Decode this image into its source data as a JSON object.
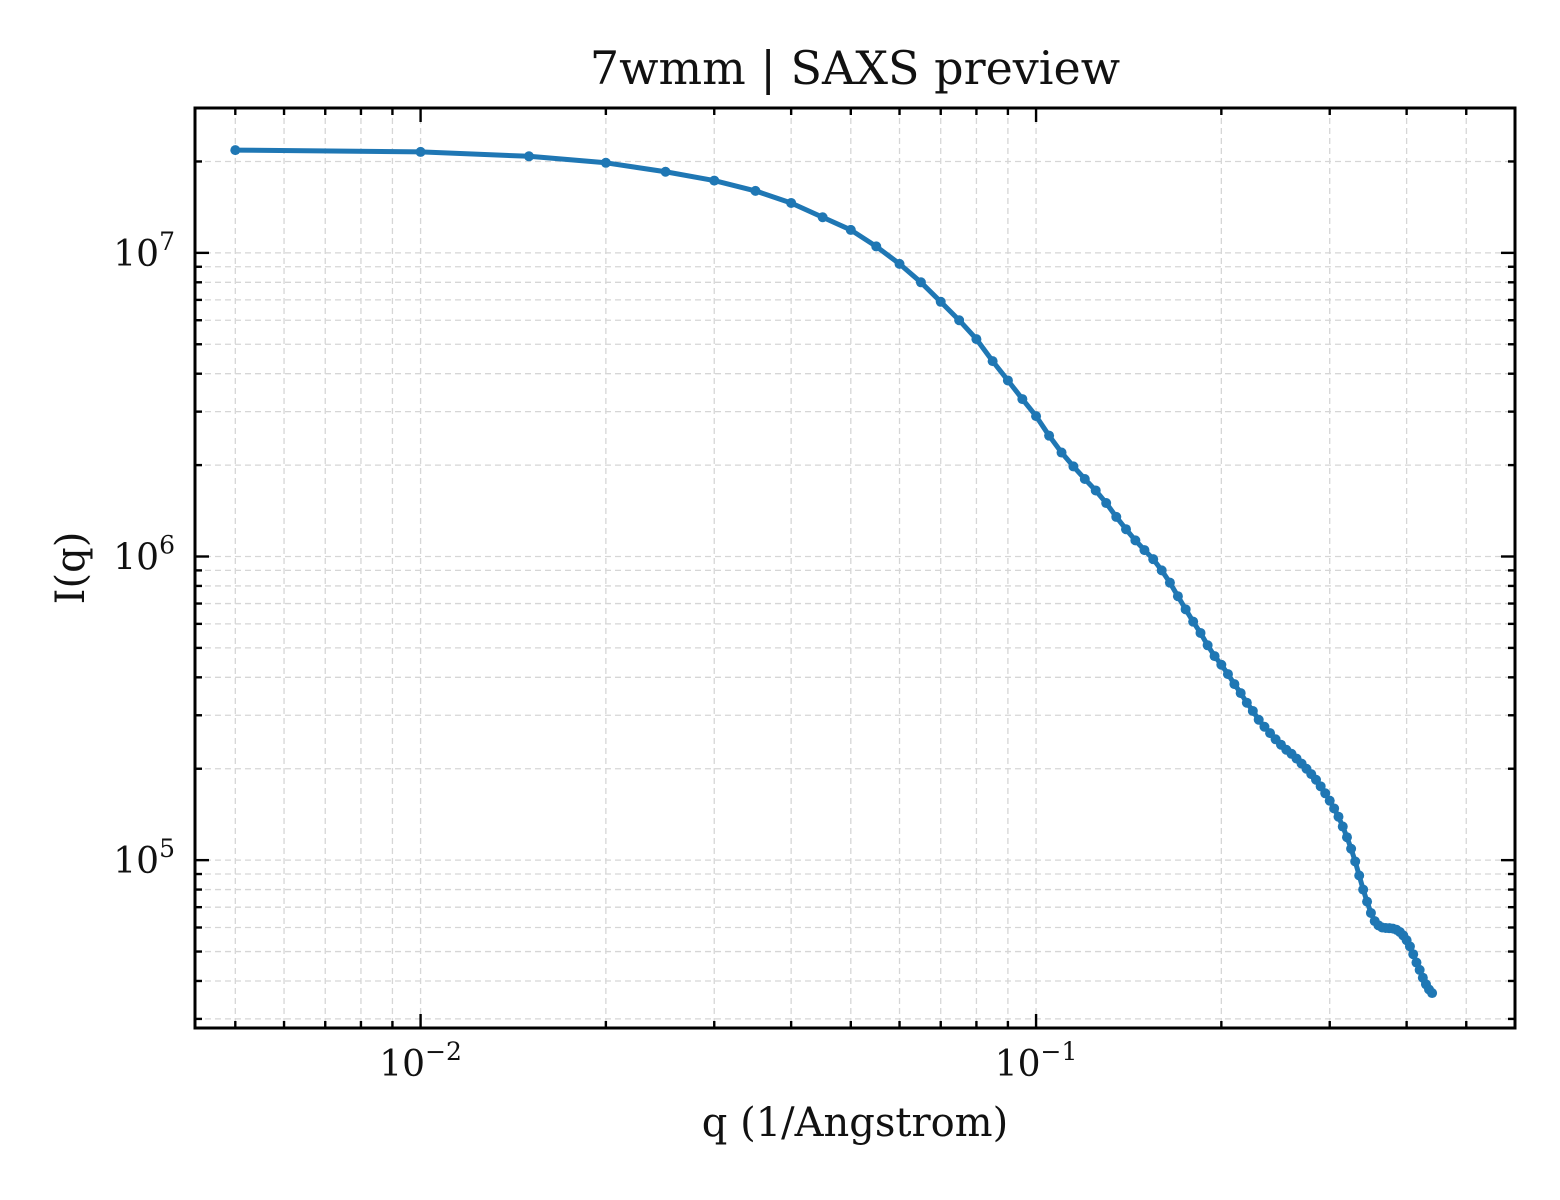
{
  "chart_data": {
    "type": "line",
    "title": "7wmm | SAXS preview",
    "xlabel": "q (1/Angstrom)",
    "ylabel": "I(q)",
    "xscale": "log",
    "yscale": "log",
    "xlim": [
      0.0043,
      0.6
    ],
    "ylim": [
      28000,
      30000000
    ],
    "grid": true,
    "legend": "none",
    "x_tick_labels": [
      {
        "base": "10",
        "exp": "−2",
        "value": 0.01
      },
      {
        "base": "10",
        "exp": "−1",
        "value": 0.1
      }
    ],
    "y_tick_labels": [
      {
        "base": "10",
        "exp": "5",
        "value": 100000
      },
      {
        "base": "10",
        "exp": "6",
        "value": 1000000
      },
      {
        "base": "10",
        "exp": "7",
        "value": 10000000
      }
    ],
    "color": "#1f77b4",
    "series": [
      {
        "marker": "dot",
        "points": [
          [
            0.005,
            21800000
          ],
          [
            0.01,
            21500000
          ],
          [
            0.015,
            20800000
          ],
          [
            0.02,
            19800000
          ],
          [
            0.025,
            18500000
          ],
          [
            0.03,
            17300000
          ],
          [
            0.035,
            16000000
          ],
          [
            0.04,
            14600000
          ],
          [
            0.045,
            13100000
          ],
          [
            0.05,
            11900000
          ],
          [
            0.055,
            10500000
          ],
          [
            0.06,
            9200000
          ],
          [
            0.065,
            8000000
          ],
          [
            0.07,
            6900000
          ],
          [
            0.075,
            6000000
          ],
          [
            0.08,
            5200000
          ],
          [
            0.085,
            4400000
          ],
          [
            0.09,
            3800000
          ],
          [
            0.095,
            3300000
          ],
          [
            0.1,
            2900000
          ],
          [
            0.105,
            2500000
          ],
          [
            0.11,
            2200000
          ],
          [
            0.115,
            1980000
          ],
          [
            0.12,
            1800000
          ],
          [
            0.125,
            1650000
          ],
          [
            0.13,
            1500000
          ],
          [
            0.135,
            1350000
          ],
          [
            0.14,
            1230000
          ],
          [
            0.145,
            1130000
          ],
          [
            0.15,
            1050000
          ],
          [
            0.155,
            980000
          ],
          [
            0.16,
            900000
          ],
          [
            0.165,
            820000
          ],
          [
            0.17,
            740000
          ],
          [
            0.175,
            670000
          ],
          [
            0.18,
            610000
          ],
          [
            0.185,
            560000
          ],
          [
            0.19,
            510000
          ],
          [
            0.195,
            470000
          ],
          [
            0.2,
            440000
          ],
          [
            0.205,
            410000
          ],
          [
            0.21,
            380000
          ],
          [
            0.215,
            355000
          ],
          [
            0.22,
            330000
          ],
          [
            0.225,
            310000
          ],
          [
            0.23,
            290000
          ],
          [
            0.235,
            275000
          ],
          [
            0.24,
            262000
          ],
          [
            0.245,
            250000
          ],
          [
            0.25,
            240000
          ],
          [
            0.255,
            231000
          ],
          [
            0.26,
            224000
          ],
          [
            0.265,
            216000
          ],
          [
            0.27,
            208000
          ],
          [
            0.275,
            200000
          ],
          [
            0.28,
            192000
          ],
          [
            0.285,
            184000
          ],
          [
            0.29,
            175000
          ],
          [
            0.295,
            166000
          ],
          [
            0.3,
            157000
          ],
          [
            0.305,
            148000
          ],
          [
            0.31,
            139000
          ],
          [
            0.315,
            129000
          ],
          [
            0.32,
            119000
          ],
          [
            0.325,
            109000
          ],
          [
            0.33,
            99000
          ],
          [
            0.335,
            89000
          ],
          [
            0.34,
            80000
          ],
          [
            0.345,
            73000
          ],
          [
            0.35,
            67000
          ],
          [
            0.355,
            63000
          ],
          [
            0.36,
            61000
          ],
          [
            0.365,
            60000
          ],
          [
            0.37,
            59800
          ],
          [
            0.375,
            59700
          ],
          [
            0.38,
            59500
          ],
          [
            0.385,
            59000
          ],
          [
            0.39,
            58000
          ],
          [
            0.395,
            56500
          ],
          [
            0.4,
            54500
          ],
          [
            0.405,
            52000
          ],
          [
            0.41,
            49000
          ],
          [
            0.415,
            46000
          ],
          [
            0.42,
            43500
          ],
          [
            0.425,
            41000
          ],
          [
            0.43,
            39000
          ],
          [
            0.435,
            37500
          ],
          [
            0.44,
            36500
          ]
        ]
      }
    ]
  }
}
